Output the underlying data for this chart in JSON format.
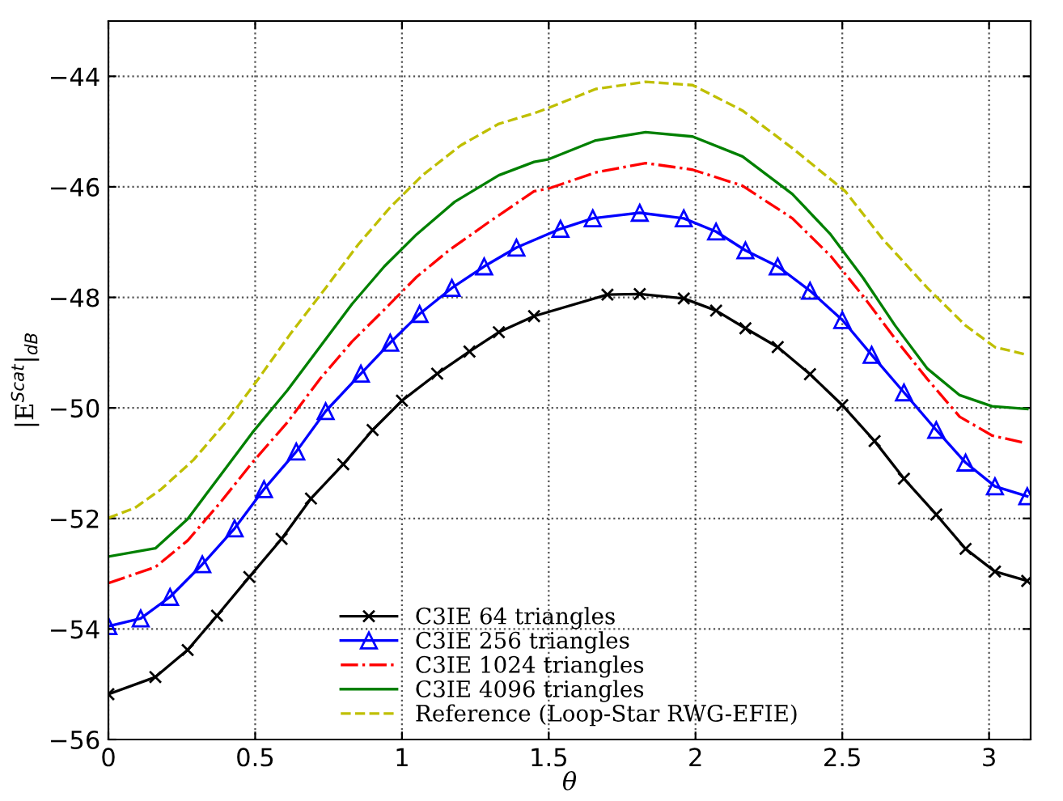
{
  "chart_data": {
    "type": "line",
    "xlabel": "θ",
    "ylabel": "|E$^{Scat}$|$_{dB}$",
    "xlim": [
      0,
      3.1416
    ],
    "ylim": [
      -56,
      -43
    ],
    "xticks": [
      0,
      0.5,
      1,
      1.5,
      2,
      2.5,
      3
    ],
    "yticks": [
      -56,
      -54,
      -52,
      -50,
      -48,
      -46,
      -44
    ],
    "grid": true,
    "legend": "bottom",
    "series": [
      {
        "name": "C3IE 64 triangles",
        "color": "#000000",
        "marker": "cross",
        "line_style": "solid",
        "x": [
          0,
          0.16,
          0.27,
          0.37,
          0.48,
          0.59,
          0.69,
          0.8,
          0.9,
          1.0,
          1.12,
          1.23,
          1.33,
          1.45,
          1.7,
          1.81,
          1.96,
          2.07,
          2.17,
          2.28,
          2.39,
          2.5,
          2.61,
          2.71,
          2.82,
          2.92,
          3.02,
          3.13
        ],
        "values": [
          -55.18,
          -54.87,
          -54.38,
          -53.76,
          -53.06,
          -52.37,
          -51.64,
          -51.02,
          -50.4,
          -49.87,
          -49.38,
          -48.98,
          -48.63,
          -48.34,
          -47.95,
          -47.94,
          -48.02,
          -48.24,
          -48.56,
          -48.9,
          -49.39,
          -49.95,
          -50.6,
          -51.28,
          -51.93,
          -52.55,
          -52.96,
          -53.13
        ]
      },
      {
        "name": "C3IE 256 triangles",
        "color": "#0000ff",
        "marker": "triangle",
        "line_style": "solid",
        "x": [
          0,
          0.11,
          0.21,
          0.32,
          0.43,
          0.53,
          0.64,
          0.74,
          0.86,
          0.96,
          1.06,
          1.17,
          1.28,
          1.39,
          1.54,
          1.65,
          1.81,
          1.96,
          2.07,
          2.17,
          2.28,
          2.39,
          2.5,
          2.6,
          2.71,
          2.82,
          2.92,
          3.02,
          3.13
        ],
        "values": [
          -53.95,
          -53.81,
          -53.42,
          -52.83,
          -52.18,
          -51.47,
          -50.79,
          -50.06,
          -49.38,
          -48.82,
          -48.3,
          -47.83,
          -47.44,
          -47.1,
          -46.76,
          -46.57,
          -46.47,
          -46.57,
          -46.81,
          -47.15,
          -47.44,
          -47.88,
          -48.41,
          -49.04,
          -49.72,
          -50.4,
          -50.99,
          -51.42,
          -51.6
        ]
      },
      {
        "name": "C3IE 1024 triangles",
        "color": "#ff0000",
        "marker": "none",
        "line_style": "dashdot",
        "x": [
          0,
          0.16,
          0.27,
          0.38,
          0.49,
          0.61,
          0.72,
          0.83,
          0.94,
          1.05,
          1.16,
          1.29,
          1.45,
          1.5,
          1.66,
          1.83,
          1.99,
          2.16,
          2.33,
          2.46,
          2.57,
          2.68,
          2.79,
          2.9,
          3.01,
          3.12
        ],
        "values": [
          -53.17,
          -52.88,
          -52.4,
          -51.72,
          -50.99,
          -50.26,
          -49.48,
          -48.8,
          -48.22,
          -47.63,
          -47.15,
          -46.66,
          -46.08,
          -46.03,
          -45.74,
          -45.57,
          -45.69,
          -45.98,
          -46.57,
          -47.25,
          -47.97,
          -48.75,
          -49.48,
          -50.16,
          -50.5,
          -50.63
        ]
      },
      {
        "name": "C3IE 4096 triangles",
        "color": "#008000",
        "marker": "none",
        "line_style": "solid",
        "x": [
          0,
          0.16,
          0.27,
          0.38,
          0.49,
          0.61,
          0.72,
          0.83,
          0.94,
          1.05,
          1.18,
          1.33,
          1.45,
          1.5,
          1.66,
          1.83,
          1.99,
          2.16,
          2.33,
          2.46,
          2.57,
          2.68,
          2.79,
          2.9,
          3.01,
          3.13
        ],
        "values": [
          -52.69,
          -52.54,
          -52.01,
          -51.23,
          -50.45,
          -49.68,
          -48.9,
          -48.12,
          -47.44,
          -46.86,
          -46.27,
          -45.79,
          -45.55,
          -45.5,
          -45.16,
          -45.01,
          -45.09,
          -45.45,
          -46.13,
          -46.86,
          -47.64,
          -48.51,
          -49.29,
          -49.77,
          -49.97,
          -50.02
        ]
      },
      {
        "name": "Reference (Loop-Star RWG-EFIE)",
        "color": "#bfbf00",
        "marker": "none",
        "line_style": "dashed",
        "x": [
          0,
          0.09,
          0.18,
          0.29,
          0.4,
          0.51,
          0.62,
          0.74,
          0.85,
          0.96,
          1.07,
          1.2,
          1.33,
          1.45,
          1.5,
          1.66,
          1.83,
          1.99,
          2.16,
          2.33,
          2.51,
          2.64,
          2.79,
          2.92,
          3.02,
          3.13
        ],
        "values": [
          -51.99,
          -51.81,
          -51.47,
          -50.94,
          -50.26,
          -49.48,
          -48.66,
          -47.83,
          -47.05,
          -46.37,
          -45.79,
          -45.25,
          -44.86,
          -44.67,
          -44.57,
          -44.23,
          -44.1,
          -44.16,
          -44.62,
          -45.3,
          -46.08,
          -46.96,
          -47.83,
          -48.51,
          -48.9,
          -49.04
        ]
      }
    ]
  }
}
